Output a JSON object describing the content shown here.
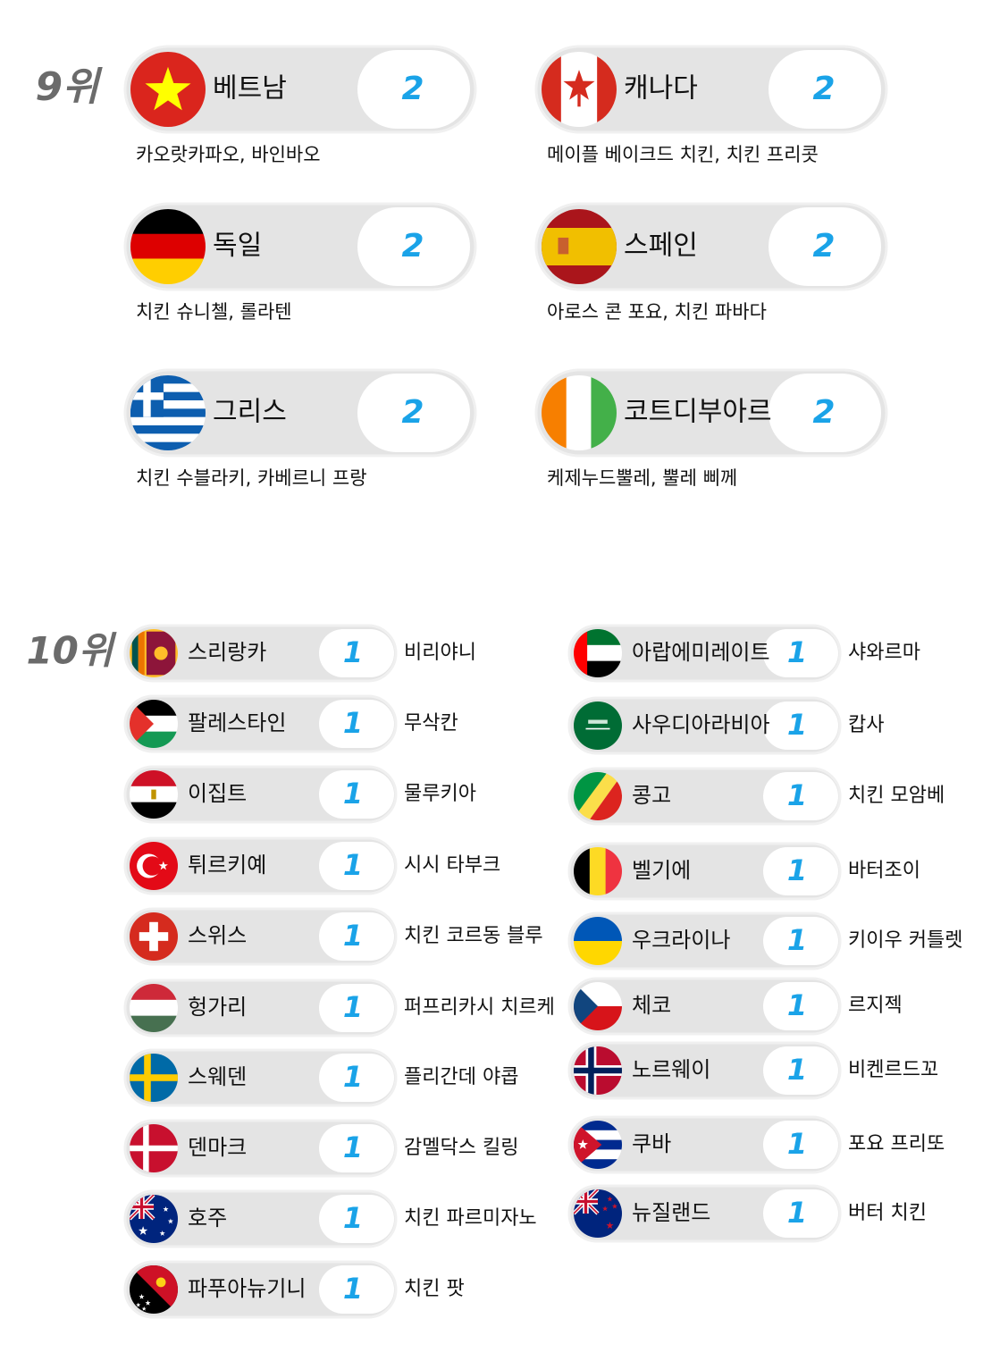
{
  "sections": [
    {
      "rank": "9위",
      "columns": [
        [
          {
            "country": "베트남",
            "count": 2,
            "dishes": "카오랏카파오, 바인바오"
          },
          {
            "country": "독일",
            "count": 2,
            "dishes": "치킨 슈니첼, 롤라텐"
          },
          {
            "country": "그리스",
            "count": 2,
            "dishes": "치킨 수블라키, 카베르니 프랑"
          }
        ],
        [
          {
            "country": "캐나다",
            "count": 2,
            "dishes": "메이플 베이크드 치킨, 치킨 프리콧"
          },
          {
            "country": "스페인",
            "count": 2,
            "dishes": "아로스 콘 포요, 치킨 파바다"
          },
          {
            "country": "코트디부아르",
            "count": 2,
            "dishes": "케제누드뿔레, 뿔레 삐께"
          }
        ]
      ]
    },
    {
      "rank": "10위",
      "columns": [
        [
          {
            "country": "스리랑카",
            "count": 1,
            "dishes": "비리야니"
          },
          {
            "country": "팔레스타인",
            "count": 1,
            "dishes": "무삭칸"
          },
          {
            "country": "이집트",
            "count": 1,
            "dishes": "물루키아"
          },
          {
            "country": "튀르키예",
            "count": 1,
            "dishes": "시시 타부크"
          },
          {
            "country": "스위스",
            "count": 1,
            "dishes": "치킨 코르동 블루"
          },
          {
            "country": "헝가리",
            "count": 1,
            "dishes": "퍼프리카시 치르케"
          },
          {
            "country": "스웨덴",
            "count": 1,
            "dishes": "플리간데 야콥"
          },
          {
            "country": "덴마크",
            "count": 1,
            "dishes": "감멜닥스 킬링"
          },
          {
            "country": "호주",
            "count": 1,
            "dishes": "치킨 파르미자노"
          },
          {
            "country": "파푸아뉴기니",
            "count": 1,
            "dishes": "치킨 팟"
          }
        ],
        [
          {
            "country": "아랍에미레이트",
            "count": 1,
            "dishes": "샤와르마"
          },
          {
            "country": "사우디아라비아",
            "count": 1,
            "dishes": "캅사"
          },
          {
            "country": "콩고",
            "count": 1,
            "dishes": "치킨 모암베"
          },
          {
            "country": "벨기에",
            "count": 1,
            "dishes": "바터조이"
          },
          {
            "country": "우크라이나",
            "count": 1,
            "dishes": "키이우 커틀렛"
          },
          {
            "country": "체코",
            "count": 1,
            "dishes": "르지젝"
          },
          {
            "country": "노르웨이",
            "count": 1,
            "dishes": "비켄르드꼬"
          },
          {
            "country": "쿠바",
            "count": 1,
            "dishes": "포요 프리또"
          },
          {
            "country": "뉴질랜드",
            "count": 1,
            "dishes": "버터 치킨"
          }
        ]
      ]
    }
  ]
}
